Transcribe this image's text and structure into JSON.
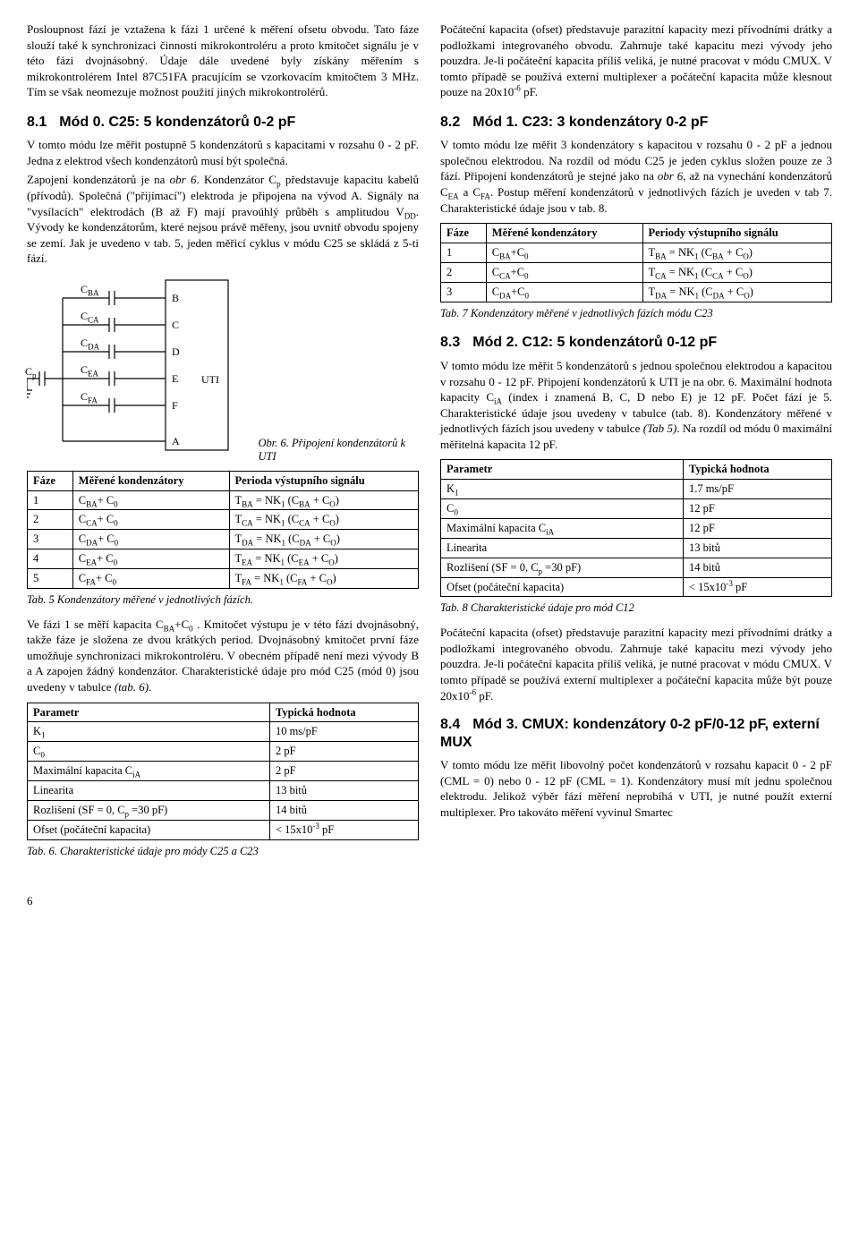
{
  "col1": {
    "p1": "Posloupnost fází je vztažena k fázi 1 určené k měření ofsetu obvodu. Tato fáze slouží také k synchronizaci činnosti mikrokontroléru a proto kmitočet signálu je v této fázi dvojnásobný. Údaje dále uvedené byly získány měřením s mikrokontrolérem Intel 87C51FA pracujícím se vzorkovacím kmitočtem 3 MHz. Tím se však neomezuje možnost použití jiných mikrokontrolérů.",
    "h81_num": "8.1",
    "h81_title": "Mód 0. C25: 5 kondenzátorů 0-2 pF",
    "p2a": "V tomto módu lze měřit postupně 5 kondenzátorů s kapacitami v rozsahu 0 - 2 pF. Jedna z elektrod všech kondenzátorů musí být společná.",
    "p2b_a": "Zapojení kondenzátorů je na ",
    "p2b_b": "obr 6",
    "p2b_c": ". Kondenzátor C",
    "p2b_d": " představuje kapacitu kabelů (přívodů). Společná (\"přijímací\") elektroda je připojena na vývod A. Signály na \"vysílacích\" elektrodách (B až F) mají pravoúhlý průběh s amplitudou V",
    "p2b_e": ". Vývody ke kondenzátorům, které nejsou právě měřeny, jsou uvnitř obvodu spojeny se zemí. Jak je uvedeno v tab. 5, jeden měřicí cyklus v módu C25 se skládá z 5-ti fází.",
    "fig6_caption": "Obr. 6. Připojení kondenzátorů k UTI",
    "tab5": {
      "h1": "Fáze",
      "h2": "Měřené kondenzátory",
      "h3": "Perioda výstupního signálu",
      "rows": [
        {
          "f": "1",
          "m": "C<sub>BA</sub>+ C<sub>0</sub>",
          "p": "T<sub>BA</sub> = NK<sub>1</sub> (C<sub>BA</sub> + C<sub>O</sub>)"
        },
        {
          "f": "2",
          "m": "C<sub>CA</sub>+ C<sub>0</sub>",
          "p": "T<sub>CA</sub> = NK<sub>1</sub> (C<sub>CA</sub> + C<sub>O</sub>)"
        },
        {
          "f": "3",
          "m": "C<sub>DA</sub>+ C<sub>0</sub>",
          "p": "T<sub>DA</sub> = NK<sub>1</sub> (C<sub>DA</sub> + C<sub>O</sub>)"
        },
        {
          "f": "4",
          "m": "C<sub>EA</sub>+ C<sub>0</sub>",
          "p": "T<sub>EA</sub> = NK<sub>1</sub> (C<sub>EA</sub> + C<sub>O</sub>)"
        },
        {
          "f": "5",
          "m": "C<sub>FA</sub>+ C<sub>0</sub>",
          "p": "T<sub>FA</sub> = NK<sub>1</sub> (C<sub>FA</sub> + C<sub>O</sub>)"
        }
      ]
    },
    "tab5_caption": "Tab. 5 Kondenzátory měřené v jednotlivých fázích.",
    "p3_a": "Ve fázi 1 se měří kapacita C",
    "p3_b": "+C",
    "p3_c": " . Kmitočet výstupu je v této fázi dvojnásobný, takže fáze je složena ze dvou krátkých period. Dvojnásobný kmitočet první fáze umožňuje synchronizaci mikrokontroléru. V obecném případě není mezi vývody B a A zapojen žádný kondenzátor. Charakteristické údaje pro mód C25 (mód 0) jsou uvedeny v tabulce ",
    "p3_d": "(tab. 6)",
    "tab6": {
      "h1": "Parametr",
      "h2": "Typická hodnota",
      "rows": [
        {
          "p": "K<sub>1</sub>",
          "v": "10 ms/pF"
        },
        {
          "p": "C<sub>0</sub>",
          "v": "2 pF"
        },
        {
          "p": "Maximální kapacita C<sub>iA</sub>",
          "v": "2 pF"
        },
        {
          "p": "Linearita",
          "v": "13 bitů"
        },
        {
          "p": "Rozlišení (SF = 0, C<sub>p</sub> =30 pF)",
          "v": "14 bitů"
        },
        {
          "p": "Ofset (počáteční kapacita)",
          "v": "< 15x10<sup>-3</sup> pF"
        }
      ]
    },
    "tab6_caption": "Tab. 6. Charakteristické údaje pro módy C25 a C23",
    "schematic": {
      "labels": [
        "C<sub>BA</sub>",
        "C<sub>CA</sub>",
        "C<sub>DA</sub>",
        "C<sub>EA</sub>",
        "C<sub>FA</sub>"
      ],
      "pins": [
        "B",
        "C",
        "D",
        "E",
        "F",
        "A"
      ],
      "cp": "C<sub>p</sub>",
      "uti": "UTI"
    }
  },
  "col2": {
    "p1a": "Počáteční kapacita (ofset) představuje parazitní kapacity mezi přívodními drátky a podložkami integrovaného obvodu. Zahrnuje také kapacitu mezi vývody jeho pouzdra. Je-li počáteční kapacita příliš veliká, je nutné pracovat v módu CMUX. V tomto případě se používá externí multiplexer a počáteční kapacita může klesnout pouze na 20x10",
    "p1b": " pF.",
    "h82_num": "8.2",
    "h82_title": "Mód 1. C23: 3 kondenzátory 0-2 pF",
    "p2_a": "V tomto módu lze měřit 3 kondenzátory s kapacitou v rozsahu 0 - 2 pF a jednou společnou elektrodou. Na rozdíl od módu C25 je jeden cyklus složen pouze ze 3 fází. Připojení kondenzátorů je stejné jako na ",
    "p2_b": "obr 6",
    "p2_c": ", až na vynechání kondenzátorů C",
    "p2_d": " a C",
    "p2_e": ". Postup měření kondenzátorů v jednotlivých fázích je uveden v tab 7. Charakteristické údaje jsou v tab. 8.",
    "tab7": {
      "h1": "Fáze",
      "h2": "Měřené kondenzátory",
      "h3": "Periody výstupního signálu",
      "rows": [
        {
          "f": "1",
          "m": "C<sub>BA</sub>+C<sub>0</sub>",
          "p": "T<sub>BA</sub> = NK<sub>1</sub> (C<sub>BA</sub> + C<sub>O</sub>)"
        },
        {
          "f": "2",
          "m": "C<sub>CA</sub>+C<sub>0</sub>",
          "p": "T<sub>CA</sub> = NK<sub>1</sub> (C<sub>CA</sub> + C<sub>O</sub>)"
        },
        {
          "f": "3",
          "m": "C<sub>DA</sub>+C<sub>0</sub>",
          "p": "T<sub>DA</sub> = NK<sub>1</sub> (C<sub>DA</sub> + C<sub>O</sub>)"
        }
      ]
    },
    "tab7_caption": "Tab. 7 Kondenzátory měřené v jednotlivých fázích módu C23",
    "h83_num": "8.3",
    "h83_title": "Mód 2. C12: 5 kondenzátorů 0-12 pF",
    "p3_a": "V tomto módu lze měřit 5 kondenzátorů s jednou společnou elektrodou a kapacitou v rozsahu 0 - 12 pF. Připojení kondenzátorů k UTI je na obr. 6. Maximální hodnota kapacity C",
    "p3_b": " (index i znamená B, C, D nebo E) je 12 pF. Počet fází je 5. Charakteristické údaje jsou uvedeny v tabulce (tab. 8). Kondenzátory měřené v jednotlivých fázích jsou uvedeny v tabulce ",
    "p3_c": "(Tab 5)",
    "p3_d": ". Na rozdíl od módu 0 maximální měřitelná kapacita 12 pF.",
    "tab8": {
      "h1": "Parametr",
      "h2": "Typická hodnota",
      "rows": [
        {
          "p": "K<sub>1</sub>",
          "v": "1.7 ms/pF"
        },
        {
          "p": "C<sub>0</sub>",
          "v": "12 pF"
        },
        {
          "p": "Maximální kapacita C<sub>iA</sub>",
          "v": "12 pF"
        },
        {
          "p": "Linearita",
          "v": "13 bitů"
        },
        {
          "p": "Rozlišení (SF = 0, C<sub>p</sub> =30 pF)",
          "v": "14 bitů"
        },
        {
          "p": "Ofset (počáteční kapacita)",
          "v": "< 15x10<sup>-3</sup> pF"
        }
      ]
    },
    "tab8_caption": "Tab. 8 Charakteristické údaje pro mód C12",
    "p4a": "Počáteční kapacita (ofset) představuje parazitní kapacity mezi přívodními drátky a podložkami integrovaného obvodu. Zahrnuje také kapacitu mezi vývody jeho pouzdra. Je-li počáteční kapacita příliš veliká, je nutné pracovat v módu CMUX. V tomto případě se používá externí multiplexer a počáteční kapacita může být pouze 20x10",
    "p4b": " pF.",
    "h84_num": "8.4",
    "h84_title": "Mód 3. CMUX: kondenzátory 0-2 pF/0-12 pF, externí MUX",
    "p5": "V tomto módu lze měřit libovolný počet kondenzátorů v rozsahu kapacit 0 - 2 pF (CML = 0) nebo 0 - 12 pF (CML = 1). Kondenzátory musí mít jednu společnou elektrodu. Jelikož výběr fází měření neprobíhá v UTI, je nutné použít externí multiplexer. Pro takováto měření vyvinul Smartec"
  },
  "pagenum": "6"
}
